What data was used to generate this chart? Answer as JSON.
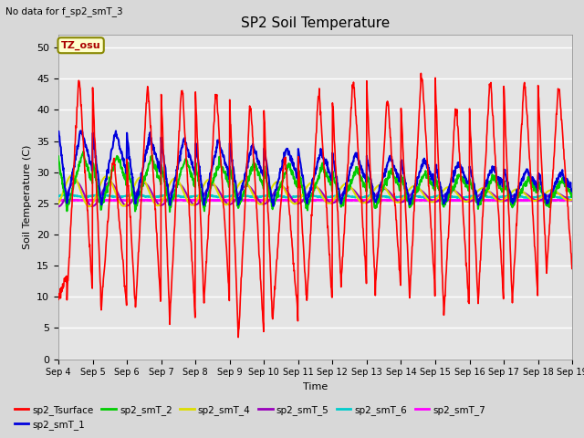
{
  "title": "SP2 Soil Temperature",
  "subtitle": "No data for f_sp2_smT_3",
  "xlabel": "Time",
  "ylabel": "Soil Temperature (C)",
  "ylim": [
    0,
    52
  ],
  "yticks": [
    0,
    5,
    10,
    15,
    20,
    25,
    30,
    35,
    40,
    45,
    50
  ],
  "tz_label": "TZ_osu",
  "tz_bg": "#ffffcc",
  "tz_border": "#999900",
  "bg_color": "#e0e0e0",
  "line_colors": {
    "sp2_Tsurface": "#ff0000",
    "sp2_smT_1": "#0000dd",
    "sp2_smT_2": "#00cc00",
    "sp2_smT_4": "#dddd00",
    "sp2_smT_5": "#9900bb",
    "sp2_smT_6": "#00cccc",
    "sp2_smT_7": "#ff00ff"
  },
  "num_days": 15,
  "dt_hours": 0.25
}
